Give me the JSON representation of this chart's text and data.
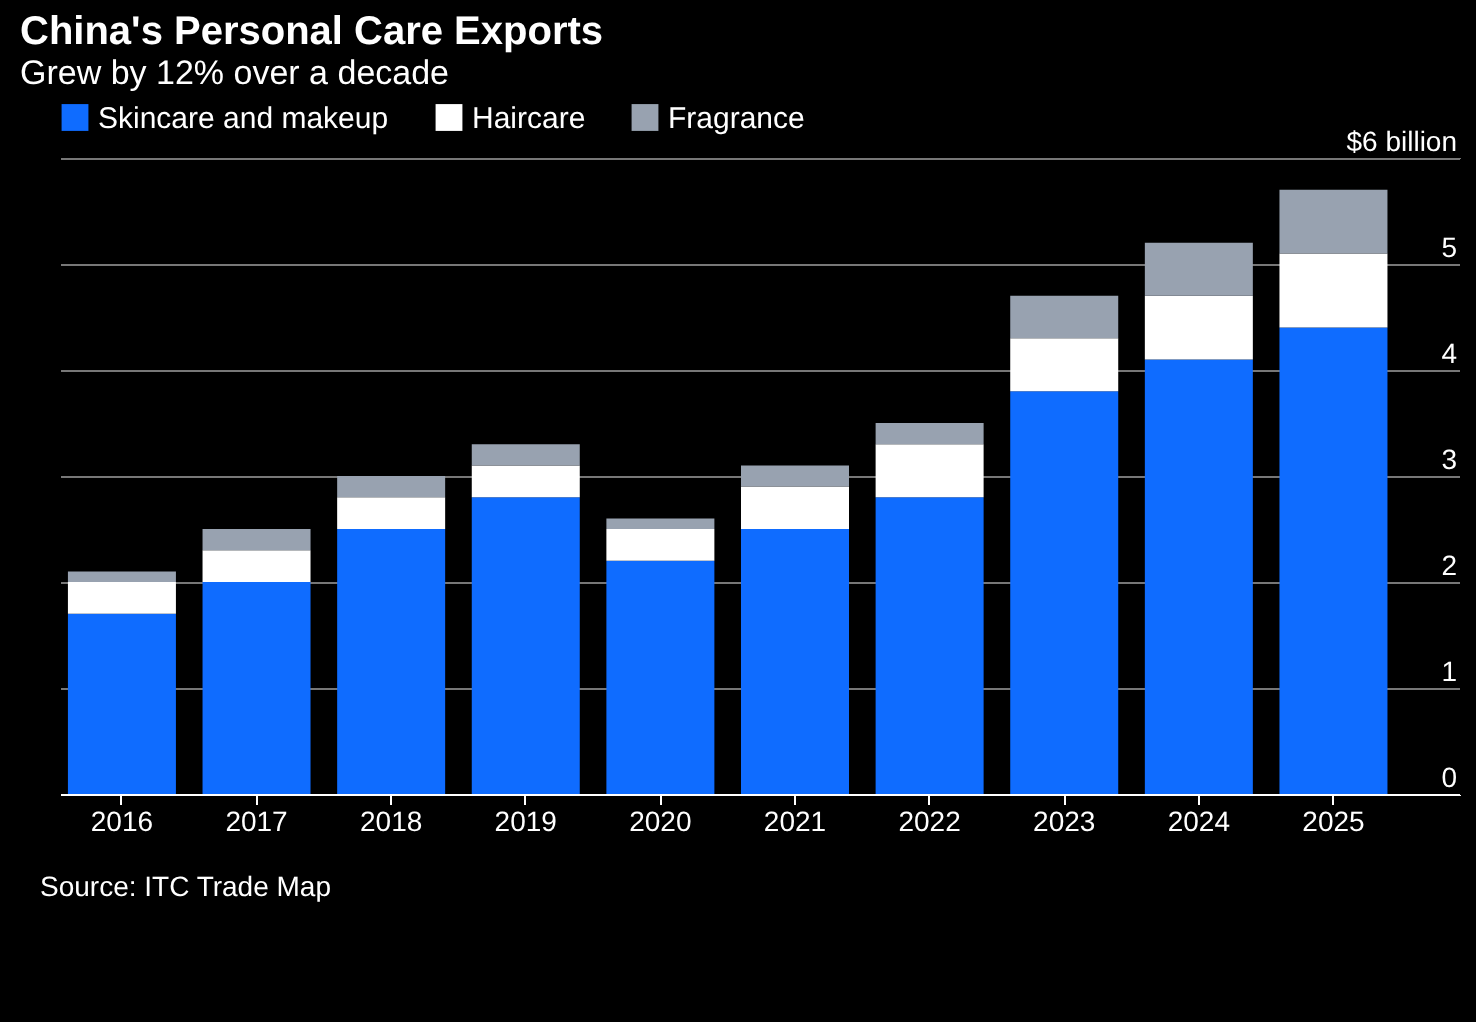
{
  "chart_data": {
    "type": "bar",
    "title": "China's Personal Care Exports",
    "subtitle": "Grew by 12% over a decade",
    "stacked": true,
    "categories": [
      "2016",
      "2017",
      "2018",
      "2019",
      "2020",
      "2021",
      "2022",
      "2023",
      "2024",
      "2025"
    ],
    "series": [
      {
        "name": "Skincare and makeup",
        "color": "#0f6cff",
        "values": [
          1.7,
          2.0,
          2.5,
          2.8,
          2.2,
          2.5,
          2.8,
          3.8,
          4.1,
          4.4
        ]
      },
      {
        "name": "Haircare",
        "color": "#ffffff",
        "values": [
          0.3,
          0.3,
          0.3,
          0.3,
          0.3,
          0.4,
          0.5,
          0.5,
          0.6,
          0.7
        ]
      },
      {
        "name": "Fragrance",
        "color": "#98a2b0",
        "values": [
          0.1,
          0.2,
          0.2,
          0.2,
          0.1,
          0.2,
          0.2,
          0.4,
          0.5,
          0.6
        ]
      }
    ],
    "ylim": [
      0,
      6
    ],
    "yticks": [
      0,
      1,
      2,
      3,
      4,
      5,
      {
        "value": 6,
        "label": "$6 billion"
      }
    ],
    "grid": "y",
    "legend": "top left",
    "annotations": [
      "Source: ITC Trade Map"
    ]
  }
}
